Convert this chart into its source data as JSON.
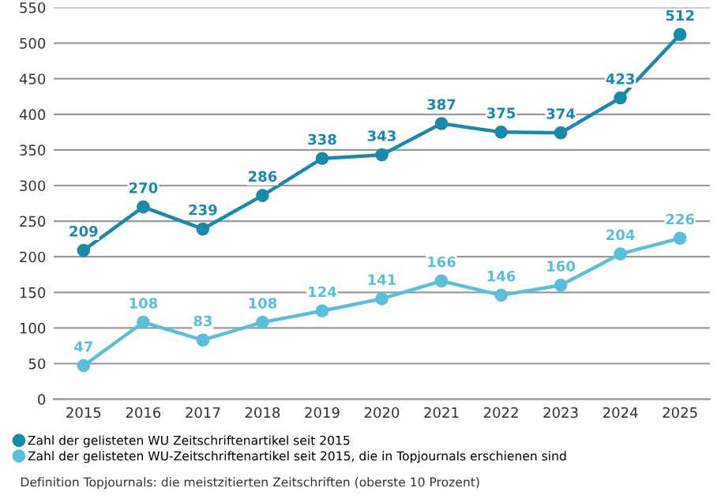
{
  "chart_data": {
    "type": "line",
    "categories": [
      "2015",
      "2016",
      "2017",
      "2018",
      "2019",
      "2020",
      "2021",
      "2022",
      "2023",
      "2024",
      "2025"
    ],
    "series": [
      {
        "name": "Zahl der gelisteten WU Zeitschriftenartikel seit 2015",
        "color": "#1b8aaa",
        "values": [
          209,
          270,
          239,
          286,
          338,
          343,
          387,
          375,
          374,
          423,
          512
        ]
      },
      {
        "name": "Zahl der gelisteten WU-Zeitschriftenartikel seit 2015, die in Topjournals erschienen sind",
        "color": "#5cbfd9",
        "values": [
          47,
          108,
          83,
          108,
          124,
          141,
          166,
          146,
          160,
          204,
          226
        ]
      }
    ],
    "ylim": [
      0,
      550
    ],
    "yticks": [
      0,
      50,
      100,
      150,
      200,
      250,
      300,
      350,
      400,
      450,
      500,
      550
    ],
    "grid": "y",
    "legend": "bottom",
    "marker": "circle",
    "line_style": "solid",
    "data_labels": true,
    "annotations": [
      "Definition Topjournals: die meistzitierten Zeitschriften (oberste 10 Prozent)"
    ]
  }
}
